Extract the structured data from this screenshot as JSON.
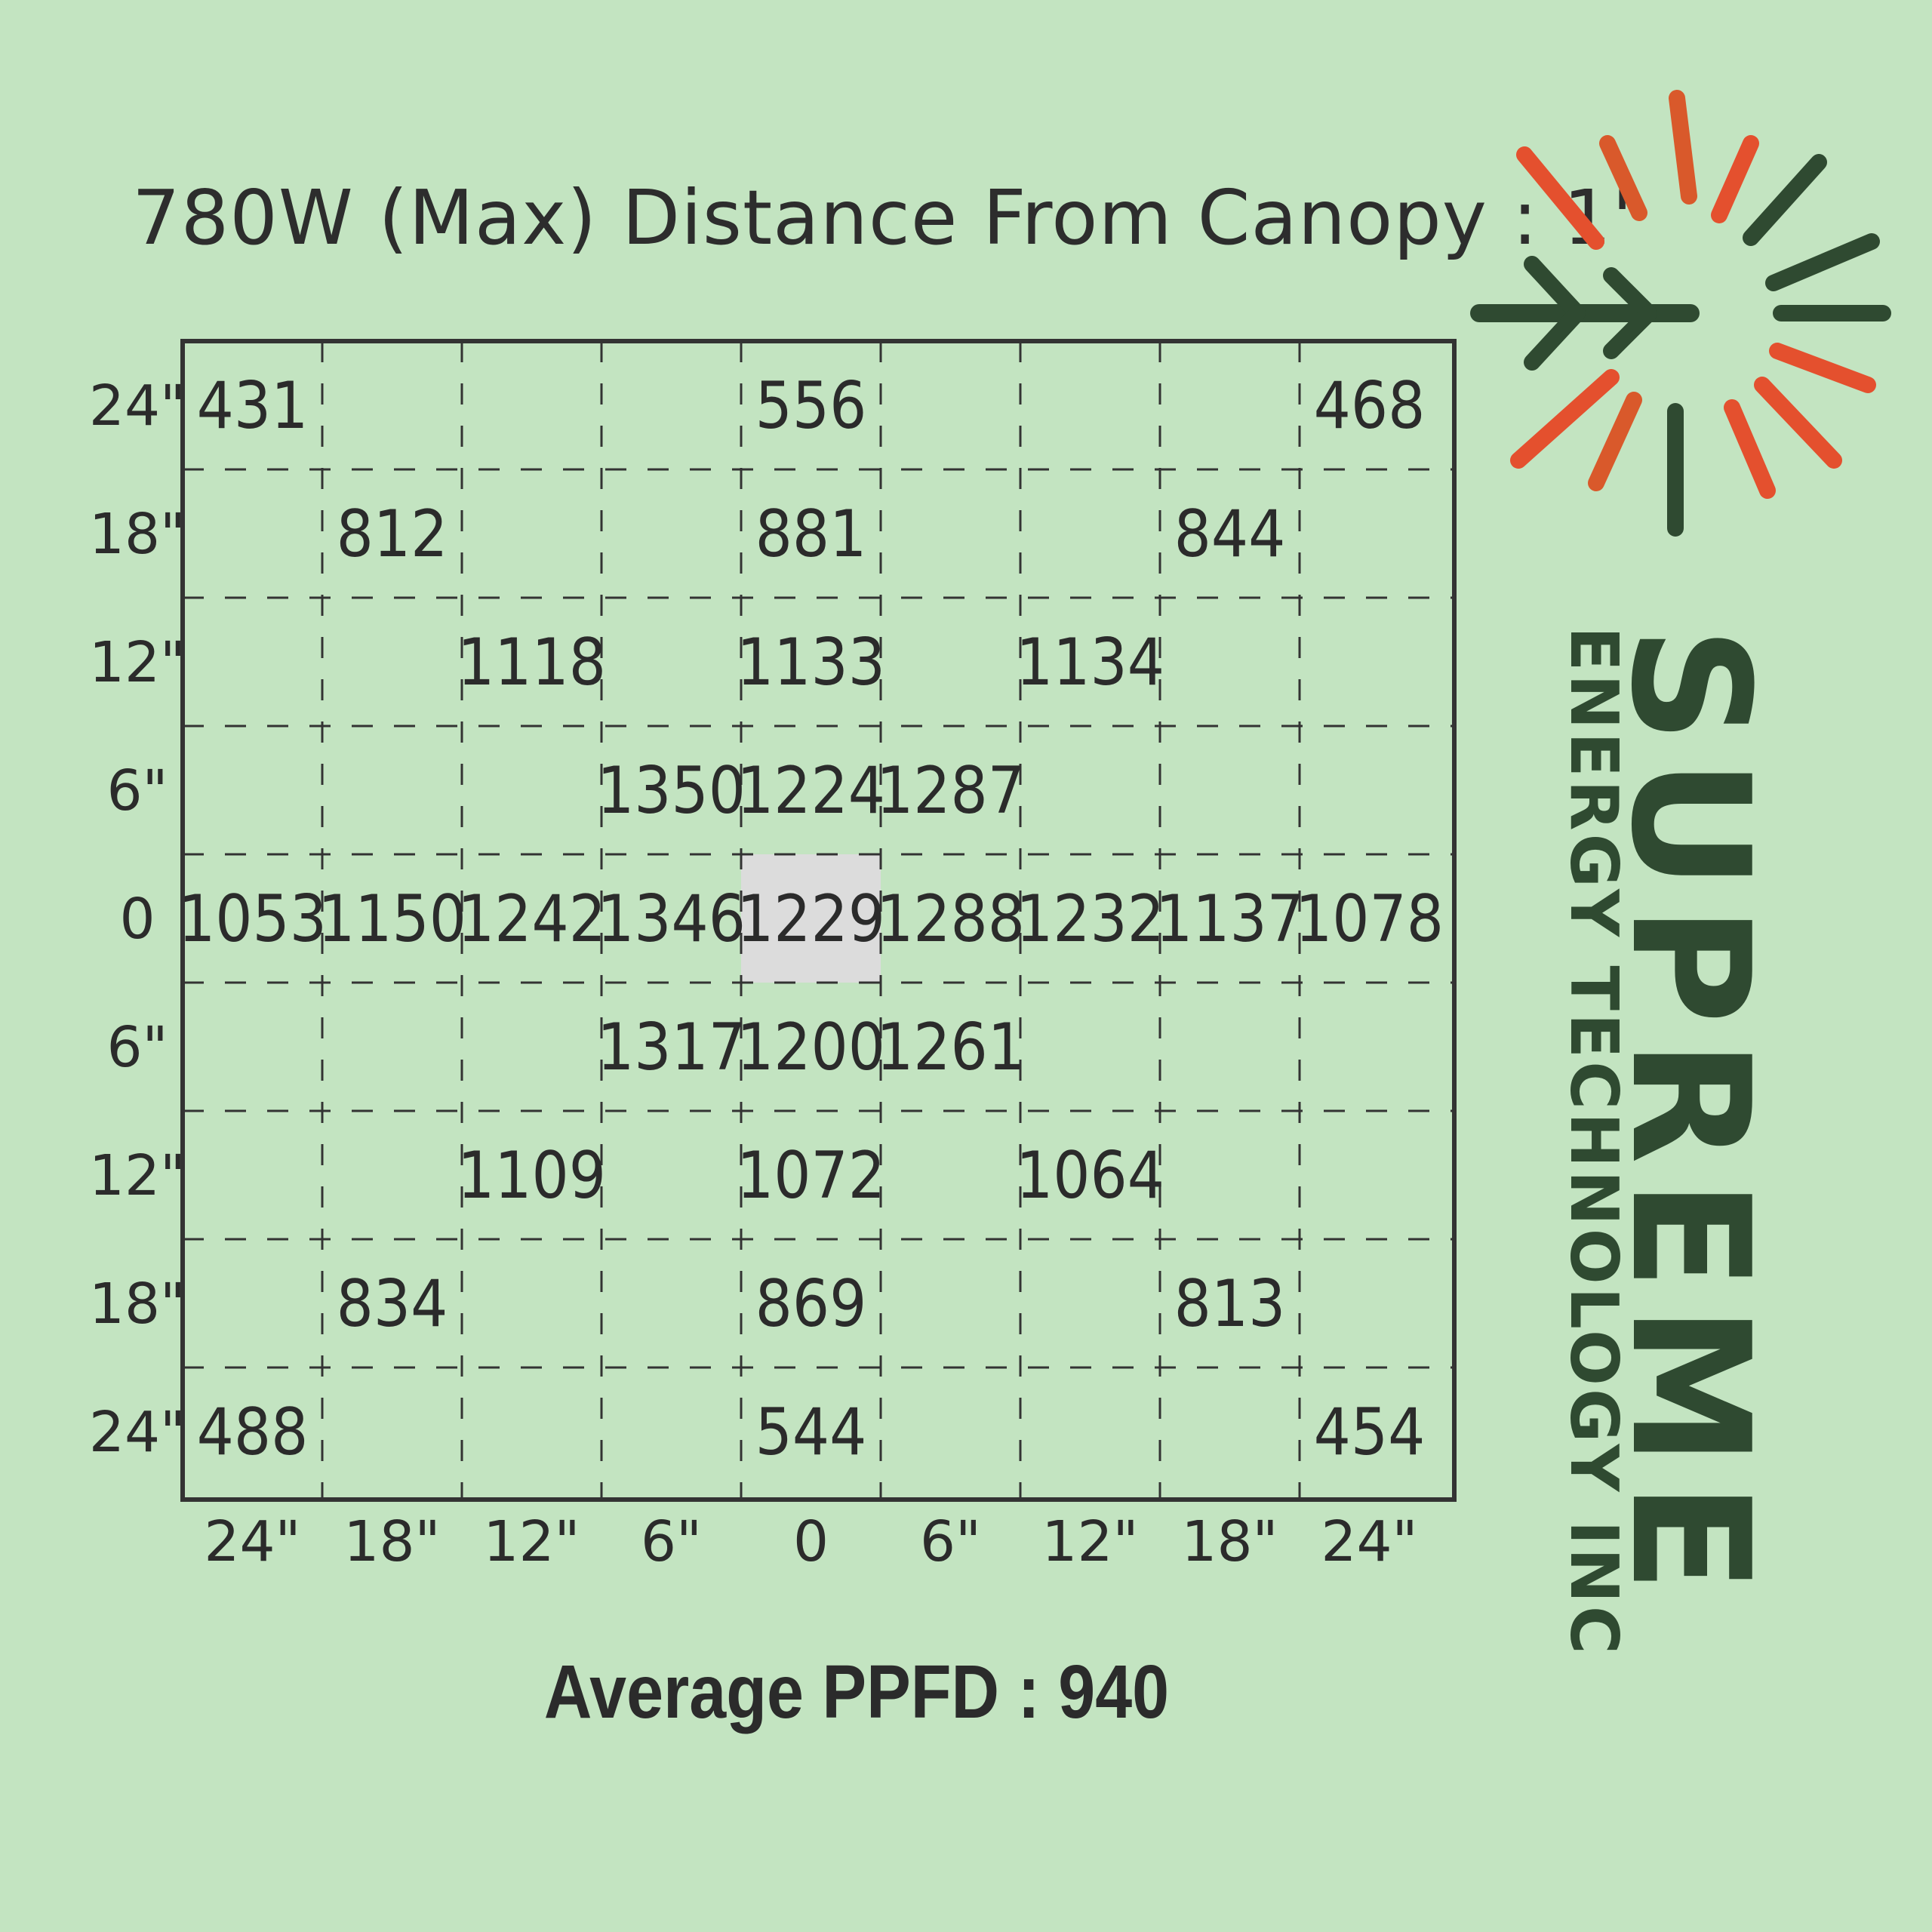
{
  "title": "780W (Max) Distance From Canopy : 1'",
  "footer": "Average PPFD : 940",
  "brand": {
    "name": "SUPREME",
    "tagline": "ENERGY TECHNOLOGY INC"
  },
  "colors": {
    "background": "#c3e4c1",
    "dark_green": "#2f4a31",
    "orange": "#e4502e",
    "highlight_cell": "#dcdcdc"
  },
  "chart_data": {
    "type": "heatmap",
    "title": "780W (Max) Distance From Canopy : 1'",
    "x_labels": [
      "24\"",
      "18\"",
      "12\"",
      "6\"",
      "0",
      "6\"",
      "12\"",
      "18\"",
      "24\""
    ],
    "y_labels": [
      "24\"",
      "18\"",
      "12\"",
      "6\"",
      "0",
      "6\"",
      "12\"",
      "18\"",
      "24\""
    ],
    "grid": true,
    "highlight": {
      "row": 4,
      "col": 4
    },
    "values": [
      [
        431,
        null,
        null,
        null,
        556,
        null,
        null,
        null,
        468
      ],
      [
        null,
        812,
        null,
        null,
        881,
        null,
        null,
        844,
        null
      ],
      [
        null,
        null,
        1118,
        null,
        1133,
        null,
        1134,
        null,
        null
      ],
      [
        null,
        null,
        null,
        1350,
        1224,
        1287,
        null,
        null,
        null
      ],
      [
        1053,
        1150,
        1242,
        1346,
        1229,
        1288,
        1232,
        1137,
        1078
      ],
      [
        null,
        null,
        null,
        1317,
        1200,
        1261,
        null,
        null,
        null
      ],
      [
        null,
        null,
        1109,
        null,
        1072,
        null,
        1064,
        null,
        null
      ],
      [
        null,
        834,
        null,
        null,
        869,
        null,
        null,
        813,
        null
      ],
      [
        488,
        null,
        null,
        null,
        544,
        null,
        null,
        null,
        454
      ]
    ],
    "average_ppfd": 940
  }
}
